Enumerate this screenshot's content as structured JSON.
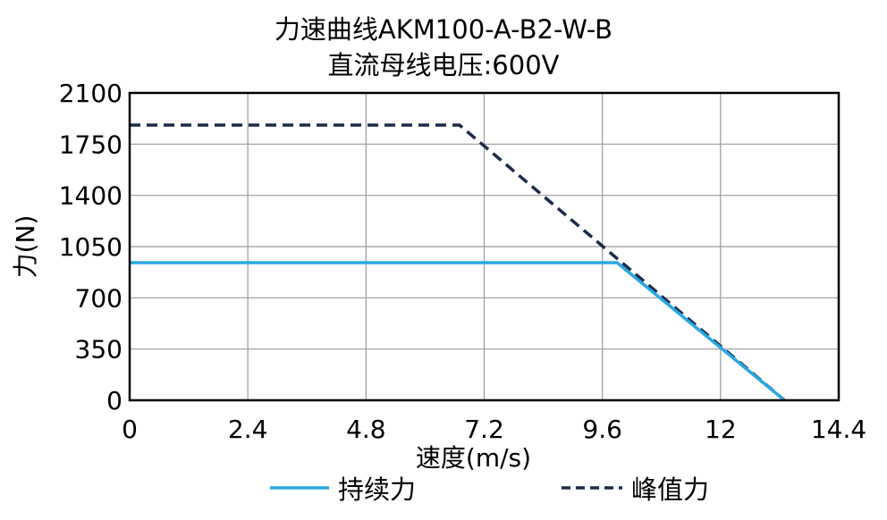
{
  "chart_data": {
    "type": "line",
    "title": "力速曲线AKM100-A-B2-W-B",
    "subtitle": "直流母线电压:600V",
    "xlabel": "速度(m/s)",
    "ylabel": "力(N)",
    "xlim": [
      0,
      14.4
    ],
    "ylim": [
      0,
      2100
    ],
    "xticks": [
      "0",
      "2.4",
      "4.8",
      "7.2",
      "9.6",
      "12",
      "14.4"
    ],
    "yticks": [
      "0",
      "350",
      "700",
      "1050",
      "1400",
      "1750",
      "2100"
    ],
    "grid": true,
    "legend_position": "bottom",
    "series": [
      {
        "name": "持续力",
        "style": "solid",
        "color": "#29a8e0",
        "x": [
          0,
          9.9,
          13.3
        ],
        "y": [
          940,
          940,
          0
        ]
      },
      {
        "name": "峰值力",
        "style": "dashed",
        "color": "#1b2a4a",
        "x": [
          0,
          6.7,
          13.3
        ],
        "y": [
          1880,
          1880,
          0
        ]
      }
    ]
  }
}
